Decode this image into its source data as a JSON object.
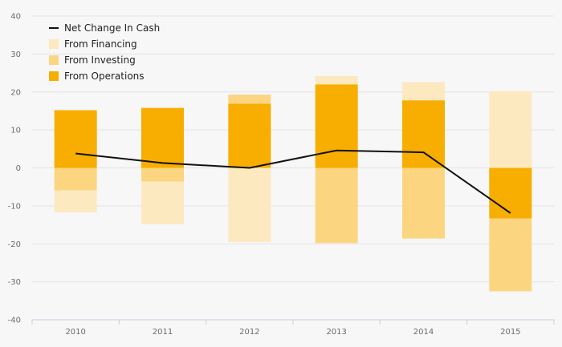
{
  "chart_data": {
    "type": "bar",
    "stacked": true,
    "categories": [
      "2010",
      "2011",
      "2012",
      "2013",
      "2014",
      "2015"
    ],
    "ylim": [
      -40,
      40
    ],
    "yticks": [
      40,
      30,
      20,
      10,
      0,
      -10,
      -20,
      -30,
      -40
    ],
    "grid": true,
    "legend_position": "top-left",
    "series": [
      {
        "name": "From Operations",
        "type": "bar",
        "color": "#f7ae00",
        "values": [
          15.2,
          15.8,
          16.9,
          22.0,
          17.8,
          -13.3
        ]
      },
      {
        "name": "From Investing",
        "type": "bar",
        "color": "#fcd580",
        "values": [
          -5.9,
          -3.6,
          2.4,
          -19.8,
          -18.6,
          -19.2
        ]
      },
      {
        "name": "From Financing",
        "type": "bar",
        "color": "#fde9bf",
        "values": [
          -5.8,
          -11.2,
          -19.5,
          2.2,
          4.8,
          20.2
        ]
      },
      {
        "name": "Net Change In Cash",
        "type": "line",
        "color": "#111111",
        "values": [
          3.8,
          1.3,
          0.0,
          4.6,
          4.1,
          -11.9
        ]
      }
    ]
  }
}
